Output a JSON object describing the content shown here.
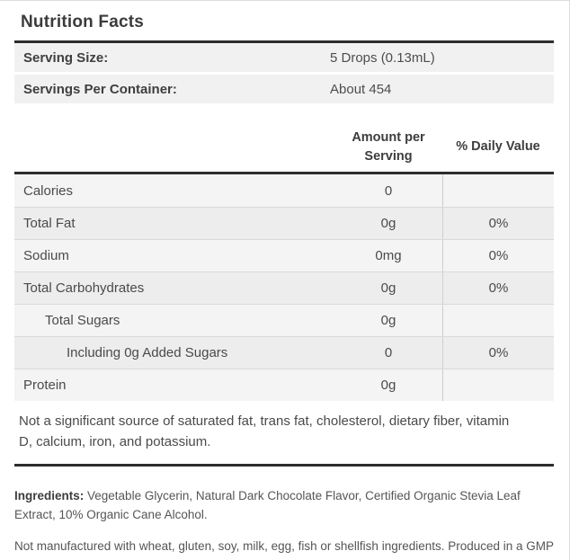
{
  "title": "Nutrition Facts",
  "serving_info": {
    "rows": [
      {
        "label": "Serving Size:",
        "value": "5 Drops (0.13mL)"
      },
      {
        "label": "Servings Per Container:",
        "value": "About 454"
      }
    ]
  },
  "table": {
    "header": {
      "amount": "Amount per Serving",
      "daily_value": "% Daily Value"
    },
    "rows": [
      {
        "name": "Calories",
        "amount": "0",
        "daily_value": "",
        "indent": 0
      },
      {
        "name": "Total Fat",
        "amount": "0g",
        "daily_value": "0%",
        "indent": 0
      },
      {
        "name": "Sodium",
        "amount": "0mg",
        "daily_value": "0%",
        "indent": 0
      },
      {
        "name": "Total Carbohydrates",
        "amount": "0g",
        "daily_value": "0%",
        "indent": 0
      },
      {
        "name": "Total Sugars",
        "amount": "0g",
        "daily_value": "",
        "indent": 1
      },
      {
        "name": "Including 0g Added Sugars",
        "amount": "0",
        "daily_value": "0%",
        "indent": 2
      },
      {
        "name": "Protein",
        "amount": "0g",
        "daily_value": "",
        "indent": 0
      }
    ]
  },
  "footnote": "Not a significant source of saturated fat, trans fat, cholesterol, dietary fiber, vitamin D, calcium, iron, and potassium.",
  "ingredients": {
    "label": "Ingredients:",
    "text": " Vegetable Glycerin, Natural Dark Chocolate Flavor, Certified Organic Stevia Leaf Extract, 10% Organic Cane Alcohol."
  },
  "allergen_note": "Not manufactured with wheat, gluten, soy, milk, egg, fish or shellfish ingredients. Produced in a GMP facility that processes other ingredients containing these allergens.",
  "colors": {
    "rule": "#2d2d2d",
    "row_light": "#f4f4f4",
    "row_dark": "#ededed",
    "serving_row": "#f1f1f1",
    "divider": "#cfcfcf",
    "panel_border": "#dddddd",
    "title_text": "#3b3b3b",
    "body_text": "#4a4a4a"
  }
}
